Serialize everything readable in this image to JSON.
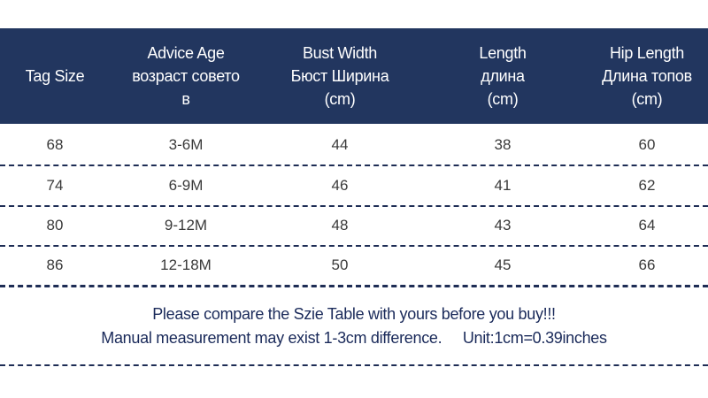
{
  "colors": {
    "header_bg": "#22365f",
    "header_text": "#ffffff",
    "note_text": "#1a2a5a",
    "divider": "#1e2d55"
  },
  "table": {
    "headers": [
      [
        "Tag Size"
      ],
      [
        "Advice Age",
        "возраст совето",
        "в"
      ],
      [
        "Bust Width",
        "Бюст Ширина",
        "(cm)"
      ],
      [
        "Length",
        "длина",
        "(cm)"
      ],
      [
        "Hip Length",
        "Длина топов",
        "(cm)"
      ]
    ],
    "rows": [
      [
        "68",
        "3-6M",
        "44",
        "38",
        "60"
      ],
      [
        "74",
        "6-9M",
        "46",
        "41",
        "62"
      ],
      [
        "80",
        "9-12M",
        "48",
        "43",
        "64"
      ],
      [
        "86",
        "12-18M",
        "50",
        "45",
        "66"
      ]
    ]
  },
  "notes": {
    "line1": "Please compare the Szie Table with yours before you buy!!!",
    "line2": "Manual measurement may exist 1-3cm difference.     Unit:1cm=0.39inches"
  }
}
